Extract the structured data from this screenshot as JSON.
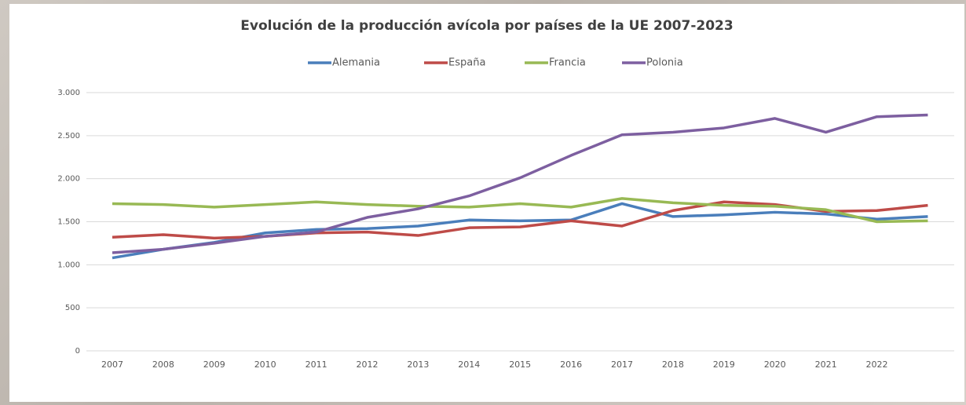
{
  "chart_data": {
    "type": "line",
    "title": "Evolución de la producción avícola por países de la UE 2007-2023",
    "categories": [
      "2007",
      "2008",
      "2009",
      "2010",
      "2011",
      "2012",
      "2013",
      "2014",
      "2015",
      "2016",
      "2017",
      "2018",
      "2019",
      "2020",
      "2021",
      "2022",
      null
    ],
    "series": [
      {
        "name": "Alemania",
        "color": "#4a7ebb",
        "values": [
          1080,
          1180,
          1260,
          1370,
          1410,
          1420,
          1450,
          1520,
          1510,
          1520,
          1710,
          1560,
          1580,
          1610,
          1590,
          1530,
          1560
        ]
      },
      {
        "name": "España",
        "color": "#be4b48",
        "values": [
          1320,
          1350,
          1310,
          1330,
          1370,
          1380,
          1340,
          1430,
          1440,
          1510,
          1450,
          1630,
          1730,
          1700,
          1620,
          1630,
          1690
        ]
      },
      {
        "name": "Francia",
        "color": "#98b954",
        "values": [
          1710,
          1700,
          1670,
          1700,
          1730,
          1700,
          1680,
          1670,
          1710,
          1670,
          1770,
          1720,
          1690,
          1680,
          1640,
          1500,
          1510
        ]
      },
      {
        "name": "Polonia",
        "color": "#7d5fa0",
        "values": [
          1140,
          1180,
          1250,
          1330,
          1380,
          1550,
          1650,
          1800,
          2010,
          2270,
          2510,
          2540,
          2590,
          2700,
          2540,
          2720,
          2740
        ]
      }
    ],
    "ylim": [
      0,
      3000
    ],
    "yticks": [
      0,
      500,
      {
        "value": 1000,
        "label": "1.000"
      },
      {
        "value": 1500,
        "label": "1.500"
      },
      {
        "value": 2000,
        "label": "2.000"
      },
      {
        "value": 2500,
        "label": "2.500"
      },
      {
        "value": 3000,
        "label": "3.000"
      }
    ],
    "grid": true,
    "legend": "top"
  }
}
